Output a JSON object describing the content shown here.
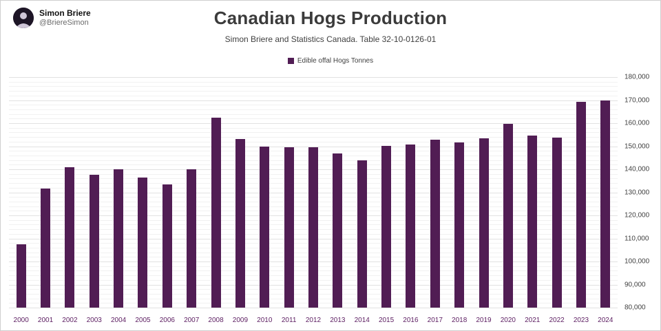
{
  "profile": {
    "name": "Simon Briere",
    "handle": "@BriereSimon"
  },
  "header": {
    "title": "Canadian Hogs Production",
    "subtitle": "Simon Briere and Statistics Canada. Table 32-10-0126-01"
  },
  "legend": {
    "label": "Edible offal Hogs Tonnes",
    "color": "#511d54"
  },
  "chart_data": {
    "type": "bar",
    "title": "Canadian Hogs Production",
    "subtitle": "Simon Briere and Statistics Canada. Table 32-10-0126-01",
    "legend_entries": [
      "Edible offal Hogs Tonnes"
    ],
    "legend_position": "top-center",
    "categories": [
      "2000",
      "2001",
      "2002",
      "2003",
      "2004",
      "2005",
      "2006",
      "2007",
      "2008",
      "2009",
      "2010",
      "2011",
      "2012",
      "2013",
      "2014",
      "2015",
      "2016",
      "2017",
      "2018",
      "2019",
      "2020",
      "2021",
      "2022",
      "2023",
      "2024"
    ],
    "values": [
      107500,
      131500,
      141000,
      137500,
      140000,
      136500,
      133500,
      140000,
      162500,
      153000,
      150000,
      149700,
      149700,
      147000,
      144000,
      150300,
      150800,
      152800,
      151700,
      153500,
      159700,
      154700,
      153800,
      169200,
      170000
    ],
    "xlabel": "",
    "ylabel": "",
    "ylim": [
      80000,
      180000
    ],
    "y_major_step": 10000,
    "y_minor_step": 2000,
    "y_tick_labels": [
      "180,000",
      "170,000",
      "160,000",
      "150,000",
      "140,000",
      "130,000",
      "120,000",
      "110,000",
      "100,000",
      "90,000",
      "80,000"
    ],
    "grid": "on",
    "bar_color": "#511d54",
    "x_axis_label_color": "#5e2063",
    "y_axis_label_color": "#3f3f3f"
  }
}
